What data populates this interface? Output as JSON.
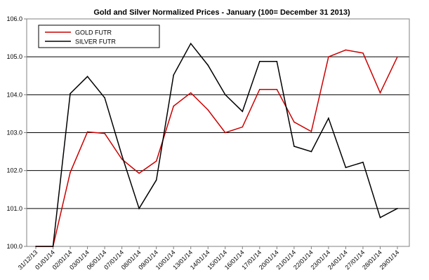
{
  "chart_data": {
    "type": "line",
    "title": "Gold and Silver Normalized Prices - January  (100= December 31 2013)",
    "xlabel": "",
    "ylabel": "",
    "ylim": [
      100.0,
      106.0
    ],
    "yticks": [
      "100.0",
      "101.0",
      "102.0",
      "103.0",
      "104.0",
      "105.0",
      "106.0"
    ],
    "ytick_values": [
      100,
      101,
      102,
      103,
      104,
      105,
      106
    ],
    "categories": [
      "31/12/13",
      "01/01/14",
      "02/01/14",
      "03/01/14",
      "06/01/14",
      "07/01/14",
      "08/01/14",
      "09/01/14",
      "10/01/14",
      "13/01/14",
      "14/01/14",
      "15/01/14",
      "16/01/14",
      "17/01/14",
      "20/01/14",
      "21/01/14",
      "22/01/14",
      "23/01/14",
      "24/01/14",
      "27/01/14",
      "28/01/14",
      "29/01/14"
    ],
    "legend_position": "top-left",
    "grid": true,
    "series": [
      {
        "name": "GOLD  FUTR",
        "color": "#cc0000",
        "values": [
          100.0,
          100.0,
          101.95,
          103.02,
          102.98,
          102.3,
          101.93,
          102.25,
          103.7,
          104.05,
          103.6,
          103.0,
          103.15,
          104.14,
          104.14,
          103.28,
          103.03,
          105.0,
          105.18,
          105.1,
          104.05,
          105.0
        ]
      },
      {
        "name": "SILVER  FUTR",
        "color": "#000000",
        "values": [
          100.0,
          100.0,
          104.03,
          104.48,
          103.92,
          102.4,
          101.0,
          101.75,
          104.52,
          105.35,
          104.78,
          104.0,
          103.56,
          104.88,
          104.88,
          102.64,
          102.5,
          103.38,
          102.08,
          102.22,
          100.76,
          101.0
        ]
      }
    ]
  }
}
